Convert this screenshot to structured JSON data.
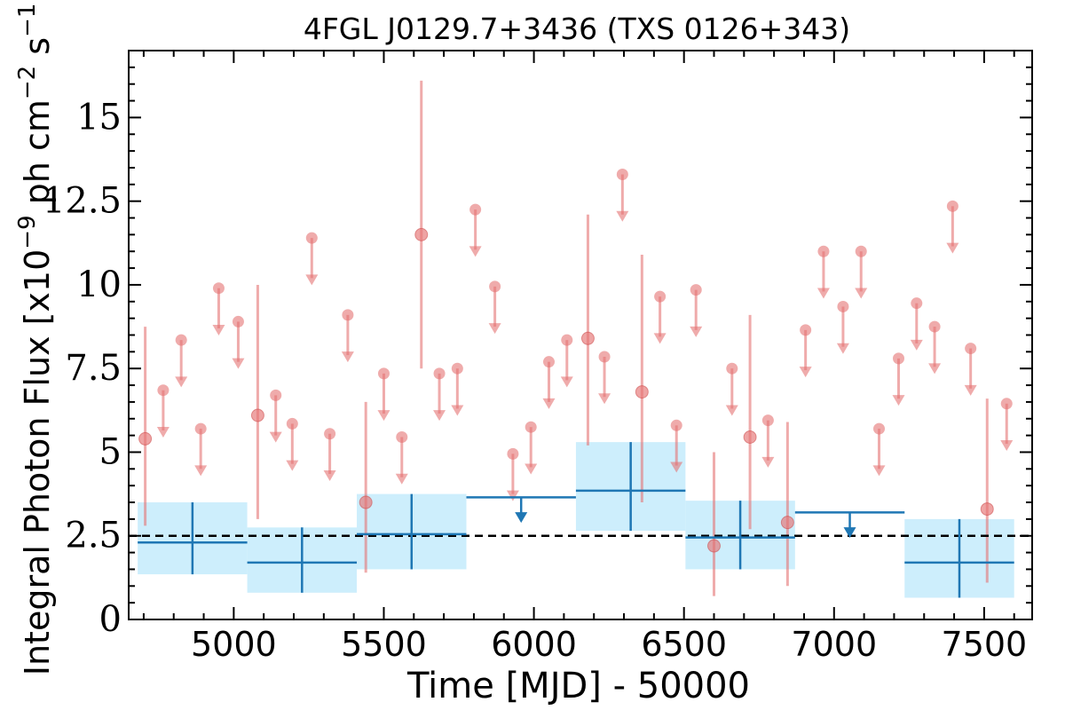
{
  "chart_data": {
    "type": "scatter",
    "title": "4FGL J0129.7+3436 (TXS 0126+343)",
    "xlabel": "Time [MJD] - 50000",
    "ylabel": "Integral Photon Flux [x10",
    "ylabel_exp1": "−9",
    "ylabel_mid": " ph cm",
    "ylabel_exp2": "−2",
    "ylabel_s": " s",
    "ylabel_exp3": "−1",
    "ylabel_end": "]",
    "xlim": [
      4650,
      7660
    ],
    "ylim": [
      0,
      17
    ],
    "xticks": [
      5000,
      5500,
      6000,
      6500,
      7000,
      7500
    ],
    "xtick_labels": [
      "5000",
      "5500",
      "6000",
      "6500",
      "7000",
      "7500"
    ],
    "yticks": [
      0,
      2.5,
      5,
      7.5,
      10,
      12.5,
      15
    ],
    "ytick_labels": [
      "0",
      "2.5",
      "5",
      "7.5",
      "10",
      "12.5",
      "15"
    ],
    "grid": false,
    "average_line": {
      "y": 2.5,
      "style": "dashed",
      "color": "#000000"
    },
    "colors": {
      "short_bin": "#e57373",
      "long_bin": "#1f77b4",
      "long_bin_band": "#cdeefc",
      "average": "#000000"
    },
    "series": [
      {
        "kind": "detections",
        "points": [
          {
            "x": 4705,
            "y": 5.4,
            "ylo": 2.8,
            "yhi": 8.75
          },
          {
            "x": 5080,
            "y": 6.1,
            "ylo": 3.0,
            "yhi": 10.0
          },
          {
            "x": 5440,
            "y": 3.5,
            "ylo": 1.4,
            "yhi": 6.5
          },
          {
            "x": 5625,
            "y": 11.5,
            "ylo": 7.5,
            "yhi": 16.1
          },
          {
            "x": 6180,
            "y": 8.4,
            "ylo": 5.2,
            "yhi": 12.1
          },
          {
            "x": 6360,
            "y": 6.8,
            "ylo": 3.5,
            "yhi": 10.9
          },
          {
            "x": 6600,
            "y": 2.2,
            "ylo": 0.7,
            "yhi": 5.0
          },
          {
            "x": 6720,
            "y": 5.45,
            "ylo": 2.7,
            "yhi": 9.1
          },
          {
            "x": 6845,
            "y": 2.9,
            "ylo": 1.0,
            "yhi": 5.9
          },
          {
            "x": 7510,
            "y": 3.3,
            "ylo": 1.1,
            "yhi": 6.6
          }
        ]
      },
      {
        "kind": "upper_limits",
        "points": [
          {
            "x": 4765,
            "y": 6.85
          },
          {
            "x": 4825,
            "y": 8.35
          },
          {
            "x": 4890,
            "y": 5.7
          },
          {
            "x": 4950,
            "y": 9.9
          },
          {
            "x": 5015,
            "y": 8.9
          },
          {
            "x": 5140,
            "y": 6.7
          },
          {
            "x": 5195,
            "y": 5.85
          },
          {
            "x": 5260,
            "y": 11.4
          },
          {
            "x": 5320,
            "y": 5.55
          },
          {
            "x": 5380,
            "y": 9.1
          },
          {
            "x": 5500,
            "y": 7.35
          },
          {
            "x": 5560,
            "y": 5.45
          },
          {
            "x": 5685,
            "y": 7.35
          },
          {
            "x": 5745,
            "y": 7.5
          },
          {
            "x": 5805,
            "y": 12.25
          },
          {
            "x": 5870,
            "y": 9.95
          },
          {
            "x": 5930,
            "y": 4.95
          },
          {
            "x": 5990,
            "y": 5.75
          },
          {
            "x": 6050,
            "y": 7.7
          },
          {
            "x": 6110,
            "y": 8.35
          },
          {
            "x": 6235,
            "y": 7.85
          },
          {
            "x": 6295,
            "y": 13.3
          },
          {
            "x": 6420,
            "y": 9.65
          },
          {
            "x": 6475,
            "y": 5.8
          },
          {
            "x": 6540,
            "y": 9.85
          },
          {
            "x": 6660,
            "y": 7.5
          },
          {
            "x": 6780,
            "y": 5.95
          },
          {
            "x": 6905,
            "y": 8.65
          },
          {
            "x": 6965,
            "y": 11.0
          },
          {
            "x": 7030,
            "y": 9.35
          },
          {
            "x": 7090,
            "y": 11.0
          },
          {
            "x": 7150,
            "y": 5.7
          },
          {
            "x": 7215,
            "y": 7.8
          },
          {
            "x": 7275,
            "y": 9.45
          },
          {
            "x": 7335,
            "y": 8.75
          },
          {
            "x": 7395,
            "y": 12.35
          },
          {
            "x": 7455,
            "y": 8.1
          },
          {
            "x": 7575,
            "y": 6.45
          }
        ]
      },
      {
        "kind": "long_bins",
        "points": [
          {
            "x0": 4680,
            "x1": 5045,
            "y": 2.3,
            "ylo": 1.35,
            "yhi": 3.5
          },
          {
            "x0": 5045,
            "x1": 5410,
            "y": 1.7,
            "ylo": 0.8,
            "yhi": 2.75
          },
          {
            "x0": 5410,
            "x1": 5775,
            "y": 2.55,
            "ylo": 1.5,
            "yhi": 3.75
          },
          {
            "x0": 6140,
            "x1": 6505,
            "y": 3.85,
            "ylo": 2.65,
            "yhi": 5.3
          },
          {
            "x0": 6505,
            "x1": 6870,
            "y": 2.45,
            "ylo": 1.5,
            "yhi": 3.55
          },
          {
            "x0": 7235,
            "x1": 7600,
            "y": 1.7,
            "ylo": 0.65,
            "yhi": 3.0
          }
        ]
      },
      {
        "kind": "long_bin_upper_limits",
        "points": [
          {
            "x0": 5775,
            "x1": 6140,
            "y": 3.65
          },
          {
            "x0": 6870,
            "x1": 7235,
            "y": 3.2
          }
        ]
      }
    ]
  }
}
